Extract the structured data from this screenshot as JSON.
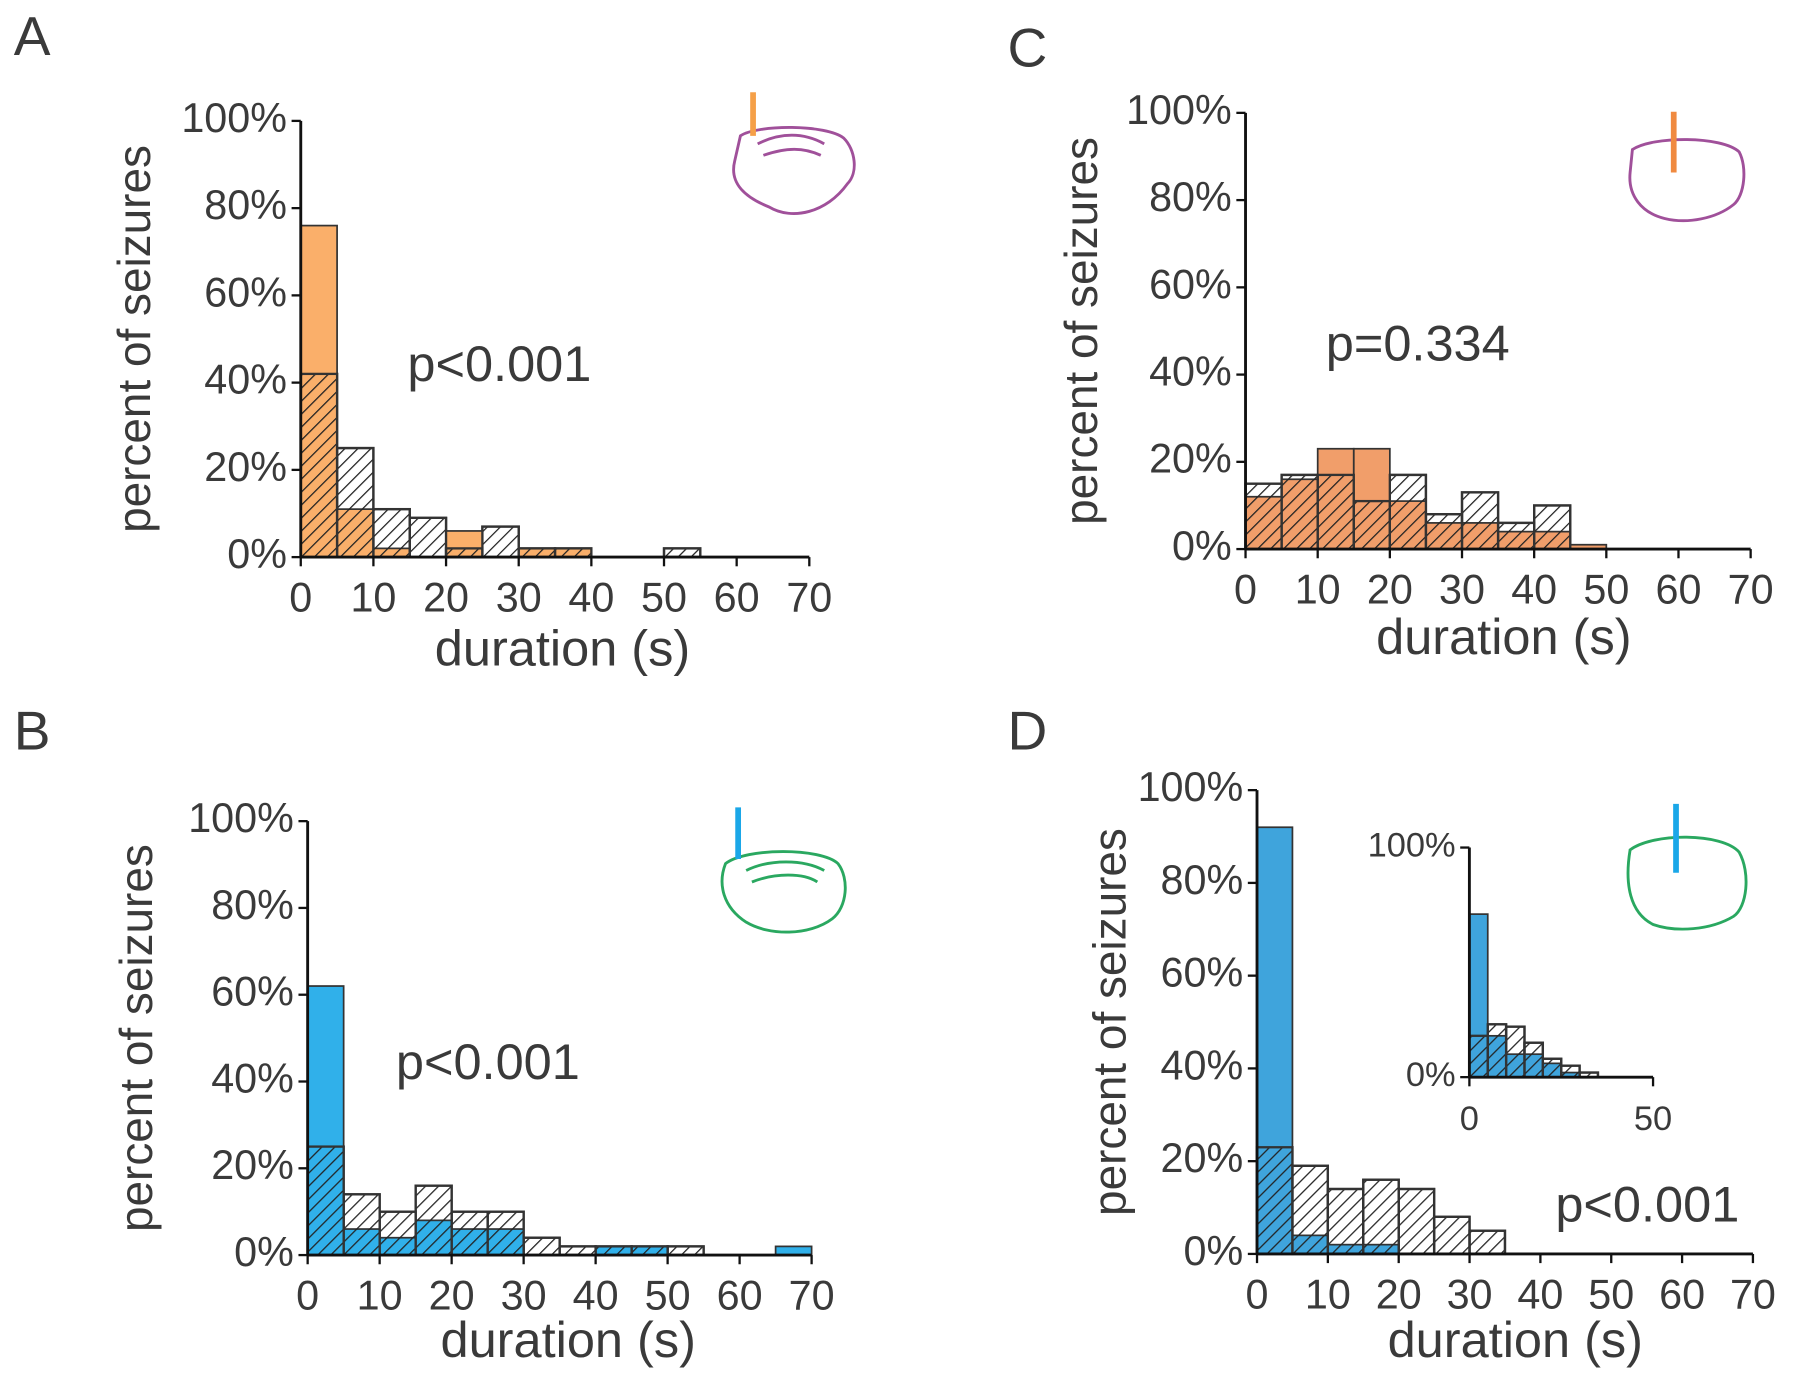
{
  "chart_data": [
    {
      "type": "histogram",
      "label": "A",
      "annotation": "p<0.001",
      "x_label": "duration (s)",
      "y_label": "percent of seizures",
      "bins": [
        0,
        5,
        10,
        15,
        20,
        25,
        30,
        35,
        40,
        45,
        50,
        55,
        60,
        65,
        70
      ],
      "series": [
        {
          "color": "#333333",
          "hatch": true,
          "values": [
            42,
            25,
            11,
            9,
            2,
            7,
            2,
            2,
            0,
            0,
            2,
            0,
            0,
            0
          ]
        },
        {
          "color": "#f9a65a",
          "values": [
            76,
            11,
            2,
            0,
            6,
            0,
            2,
            2,
            0,
            0,
            0,
            0,
            0,
            0
          ]
        }
      ],
      "xlim": [
        0,
        70
      ],
      "xticks": [
        0,
        10,
        20,
        30,
        40,
        50,
        60,
        70
      ],
      "ylim": [
        0,
        100
      ],
      "yticks": [
        {
          "value": 0,
          "label": "0%"
        },
        {
          "value": 20,
          "label": "20%"
        },
        {
          "value": 40,
          "label": "40%"
        },
        {
          "value": 60,
          "label": "60%"
        },
        {
          "value": 80,
          "label": "80%"
        },
        {
          "value": 100,
          "label": "100%"
        }
      ]
    },
    {
      "type": "histogram",
      "label": "B",
      "annotation": "p<0.001",
      "x_label": "duration (s)",
      "y_label": "percent of seizures",
      "bins": [
        0,
        5,
        10,
        15,
        20,
        25,
        30,
        35,
        40,
        45,
        50,
        55,
        60,
        65,
        70
      ],
      "series": [
        {
          "color": "#333333",
          "hatch": true,
          "values": [
            25,
            14,
            10,
            16,
            10,
            10,
            4,
            2,
            2,
            2,
            2,
            0,
            0,
            0
          ]
        },
        {
          "color": "#1aa7e8",
          "values": [
            62,
            6,
            4,
            8,
            6,
            6,
            0,
            0,
            2,
            2,
            0,
            0,
            0,
            2
          ]
        }
      ],
      "xlim": [
        0,
        70
      ],
      "xticks": [
        0,
        10,
        20,
        30,
        40,
        50,
        60,
        70
      ],
      "ylim": [
        0,
        100
      ],
      "yticks": [
        {
          "value": 0,
          "label": "0%"
        },
        {
          "value": 20,
          "label": "20%"
        },
        {
          "value": 40,
          "label": "40%"
        },
        {
          "value": 60,
          "label": "60%"
        },
        {
          "value": 80,
          "label": "80%"
        },
        {
          "value": 100,
          "label": "100%"
        }
      ]
    },
    {
      "type": "histogram",
      "label": "C",
      "annotation": "p=0.334",
      "x_label": "duration (s)",
      "y_label": "percent of seizures",
      "bins": [
        0,
        5,
        10,
        15,
        20,
        25,
        30,
        35,
        40,
        45,
        50,
        55,
        60,
        65,
        70
      ],
      "series": [
        {
          "color": "#333333",
          "hatch": true,
          "values": [
            15,
            17,
            17,
            11,
            17,
            8,
            13,
            6,
            10,
            0,
            0,
            0,
            0,
            0
          ]
        },
        {
          "color": "#f0945a",
          "values": [
            12,
            16,
            23,
            23,
            11,
            6,
            6,
            4,
            4,
            1,
            0,
            0,
            0,
            0
          ]
        }
      ],
      "xlim": [
        0,
        70
      ],
      "xticks": [
        0,
        10,
        20,
        30,
        40,
        50,
        60,
        70
      ],
      "ylim": [
        0,
        100
      ],
      "yticks": [
        {
          "value": 0,
          "label": "0%"
        },
        {
          "value": 20,
          "label": "20%"
        },
        {
          "value": 40,
          "label": "40%"
        },
        {
          "value": 60,
          "label": "60%"
        },
        {
          "value": 80,
          "label": "80%"
        },
        {
          "value": 100,
          "label": "100%"
        }
      ]
    },
    {
      "type": "histogram",
      "label": "D",
      "annotation": "p<0.001",
      "x_label": "duration (s)",
      "y_label": "percent of seizures",
      "bins": [
        0,
        5,
        10,
        15,
        20,
        25,
        30,
        35
      ],
      "series": [
        {
          "color": "#333333",
          "hatch": true,
          "values": [
            23,
            19,
            14,
            16,
            14,
            8,
            5
          ]
        },
        {
          "color": "#2a9ad8",
          "values": [
            92,
            4,
            2,
            2,
            0,
            0,
            0
          ]
        }
      ],
      "xlim": [
        0,
        70
      ],
      "xticks": [
        0,
        10,
        20,
        30,
        40,
        50,
        60,
        70
      ],
      "ylim": [
        0,
        100
      ],
      "yticks": [
        {
          "value": 0,
          "label": "0%"
        },
        {
          "value": 20,
          "label": "20%"
        },
        {
          "value": 40,
          "label": "40%"
        },
        {
          "value": 60,
          "label": "60%"
        },
        {
          "value": 80,
          "label": "80%"
        },
        {
          "value": 100,
          "label": "100%"
        }
      ]
    },
    {
      "type": "histogram",
      "bins": [
        0,
        5,
        10,
        15,
        20,
        25,
        30,
        35
      ],
      "series": [
        {
          "color": "#333333",
          "hatch": true,
          "values": [
            18,
            23,
            22,
            15,
            8,
            5,
            2
          ]
        },
        {
          "color": "#2a9ad8",
          "values": [
            71,
            18,
            10,
            10,
            6,
            2,
            0
          ]
        }
      ],
      "xlim": [
        0,
        50
      ],
      "xticks": [
        0,
        50
      ],
      "ylim": [
        0,
        100
      ],
      "yticks": [
        {
          "value": 0,
          "label": "0%"
        },
        {
          "value": 100,
          "label": "100%"
        }
      ]
    }
  ]
}
